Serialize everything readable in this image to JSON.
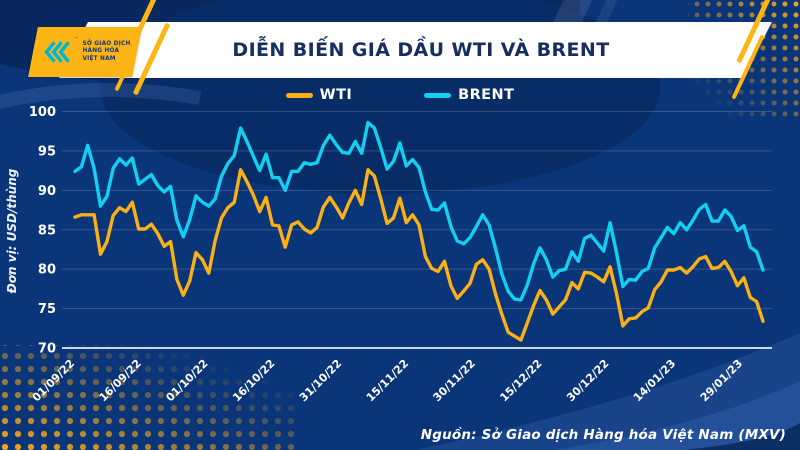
{
  "header": {
    "title": "DIỄN BIẾN GIÁ DẦU WTI VÀ BRENT"
  },
  "logo": {
    "line1": "SỞ GIAO DỊCH",
    "line2": "HÀNG HÓA",
    "line3": "VIỆT NAM",
    "tm": "™"
  },
  "footer": {
    "source": "Nguồn: Sở Giao dịch Hàng hóa Việt Nam (MXV)"
  },
  "colors": {
    "background": "#0a3578",
    "banner": "#ffffff",
    "title_text": "#172e60",
    "accent_yellow": "#fdb515",
    "wti_line": "#fbb116",
    "brent_line": "#11d0f2",
    "axis_text": "#ffffff"
  },
  "chart_data": {
    "type": "line",
    "title": "DIỄN BIẾN GIÁ DẦU WTI VÀ BRENT",
    "ylabel": "Đơn vị: USD/thùng",
    "ylim": [
      70,
      100
    ],
    "y_ticks": [
      70,
      75,
      80,
      85,
      90,
      95,
      100
    ],
    "grid": "horizontal",
    "legend_position": "top-center",
    "x_tick_labels": [
      "01/09/22",
      "16/09/22",
      "01/10/22",
      "16/10/22",
      "31/10/22",
      "15/11/22",
      "30/11/22",
      "15/12/22",
      "30/12/22",
      "14/01/23",
      "29/01/23"
    ],
    "x": [
      "01/09",
      "02/09",
      "05/09",
      "06/09",
      "07/09",
      "08/09",
      "09/09",
      "12/09",
      "13/09",
      "14/09",
      "15/09",
      "16/09",
      "19/09",
      "20/09",
      "21/09",
      "22/09",
      "23/09",
      "26/09",
      "27/09",
      "28/09",
      "29/09",
      "30/09",
      "03/10",
      "04/10",
      "05/10",
      "06/10",
      "07/10",
      "10/10",
      "11/10",
      "12/10",
      "13/10",
      "14/10",
      "17/10",
      "18/10",
      "19/10",
      "20/10",
      "21/10",
      "24/10",
      "25/10",
      "26/10",
      "27/10",
      "28/10",
      "31/10",
      "01/11",
      "02/11",
      "03/11",
      "04/11",
      "07/11",
      "08/11",
      "09/11",
      "10/11",
      "11/11",
      "14/11",
      "15/11",
      "16/11",
      "17/11",
      "18/11",
      "21/11",
      "22/11",
      "23/11",
      "25/11",
      "28/11",
      "29/11",
      "30/11",
      "01/12",
      "02/12",
      "05/12",
      "06/12",
      "07/12",
      "08/12",
      "09/12",
      "12/12",
      "13/12",
      "14/12",
      "15/12",
      "16/12",
      "19/12",
      "20/12",
      "21/12",
      "22/12",
      "23/12",
      "27/12",
      "28/12",
      "29/12",
      "30/12",
      "03/01",
      "04/01",
      "05/01",
      "06/01",
      "09/01",
      "10/01",
      "11/01",
      "12/01",
      "13/01",
      "16/01",
      "17/01",
      "18/01",
      "19/01",
      "20/01",
      "23/01",
      "24/01",
      "25/01",
      "26/01",
      "27/01",
      "30/01",
      "31/01",
      "01/02",
      "02/02",
      "03/02"
    ],
    "series": [
      {
        "name": "WTI",
        "color": "#fbb116",
        "values": [
          86.6,
          86.9,
          86.9,
          86.9,
          81.9,
          83.5,
          86.8,
          87.8,
          87.3,
          88.5,
          85.1,
          85.1,
          85.7,
          84.5,
          82.9,
          83.5,
          78.7,
          76.7,
          78.5,
          82.1,
          81.2,
          79.5,
          83.6,
          86.5,
          87.8,
          88.5,
          92.6,
          91.1,
          89.4,
          87.3,
          89.1,
          85.6,
          85.5,
          82.8,
          85.6,
          86.0,
          85.1,
          84.6,
          85.3,
          87.9,
          89.1,
          87.9,
          86.5,
          88.4,
          90.0,
          88.2,
          92.6,
          91.8,
          88.9,
          85.8,
          86.5,
          89.0,
          85.9,
          86.9,
          85.6,
          81.6,
          80.1,
          79.7,
          81.0,
          77.9,
          76.3,
          77.2,
          78.2,
          80.6,
          81.2,
          80.0,
          76.9,
          74.3,
          72.0,
          71.5,
          71.0,
          73.2,
          75.4,
          77.3,
          76.1,
          74.3,
          75.2,
          76.1,
          78.3,
          77.5,
          79.6,
          79.5,
          79.0,
          78.4,
          80.3,
          76.9,
          72.8,
          73.7,
          73.8,
          74.6,
          75.1,
          77.4,
          78.4,
          79.9,
          79.9,
          80.2,
          79.5,
          80.3,
          81.3,
          81.6,
          80.1,
          80.2,
          81.0,
          79.7,
          77.9,
          78.9,
          76.4,
          75.9,
          73.4
        ]
      },
      {
        "name": "BRENT",
        "color": "#11d0f2",
        "values": [
          92.4,
          93.0,
          95.7,
          92.8,
          88.0,
          89.2,
          92.8,
          94.0,
          93.2,
          94.1,
          90.8,
          91.4,
          92.0,
          90.6,
          89.8,
          90.5,
          86.2,
          84.1,
          86.3,
          89.3,
          88.5,
          88.0,
          88.9,
          91.8,
          93.4,
          94.4,
          97.9,
          96.2,
          94.3,
          92.5,
          94.6,
          91.6,
          91.6,
          90.0,
          92.4,
          92.4,
          93.5,
          93.3,
          93.5,
          95.7,
          97.0,
          95.8,
          94.8,
          94.7,
          96.2,
          94.7,
          98.6,
          97.9,
          95.4,
          92.7,
          93.7,
          96.0,
          93.1,
          93.9,
          92.9,
          89.8,
          87.6,
          87.5,
          88.4,
          85.4,
          83.6,
          83.2,
          84.0,
          85.4,
          86.9,
          85.6,
          82.7,
          79.4,
          77.2,
          76.2,
          76.1,
          78.0,
          80.7,
          82.7,
          81.2,
          79.0,
          79.8,
          80.0,
          82.2,
          81.0,
          83.9,
          84.3,
          83.3,
          82.3,
          85.9,
          82.1,
          77.8,
          78.7,
          78.6,
          79.7,
          80.1,
          82.7,
          84.0,
          85.3,
          84.5,
          85.9,
          85.0,
          86.2,
          87.6,
          88.2,
          86.1,
          86.1,
          87.5,
          86.7,
          84.9,
          85.5,
          82.8,
          82.2,
          79.9
        ]
      }
    ]
  }
}
